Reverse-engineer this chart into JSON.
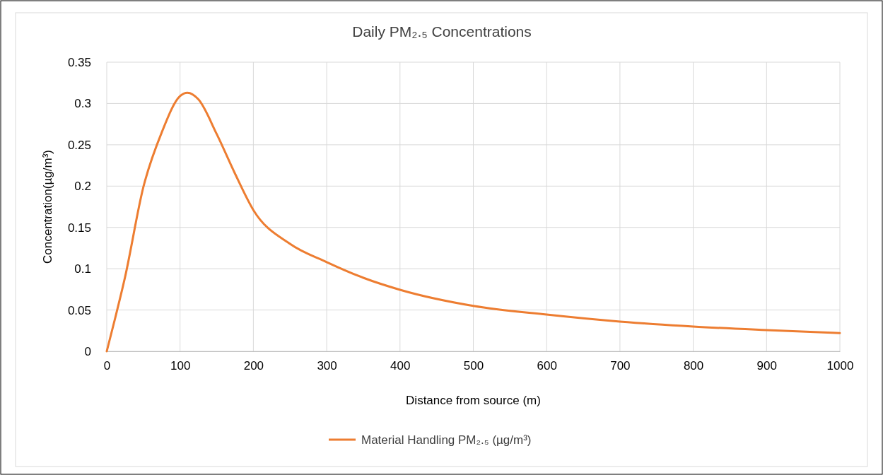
{
  "chart_data": {
    "type": "line",
    "title": "Daily PM₂.₅ Concentrations",
    "xlabel": "Distance from source (m)",
    "ylabel": "Concentration(µg/m³)",
    "x": [
      0,
      10,
      25,
      50,
      75,
      100,
      110,
      125,
      150,
      175,
      200,
      250,
      300,
      350,
      400,
      500,
      600,
      700,
      800,
      900,
      1000
    ],
    "series": [
      {
        "name": "Material Handling PM₂.₅ (µg/m³)",
        "color": "#ed7d31",
        "values": [
          0,
          0.035,
          0.09,
          0.199,
          0.265,
          0.309,
          0.313,
          0.305,
          0.263,
          0.215,
          0.171,
          0.13,
          0.108,
          0.089,
          0.0745,
          0.055,
          0.0445,
          0.036,
          0.03,
          0.0257,
          0.022
        ]
      }
    ],
    "xlim": [
      0,
      1000
    ],
    "xticks": [
      0,
      100,
      200,
      300,
      400,
      500,
      600,
      700,
      800,
      900,
      1000
    ],
    "ylim": [
      0,
      0.35
    ],
    "yticks": [
      0,
      {
        "value": 0.05,
        "label": "0.05"
      },
      {
        "value": 0.1,
        "label": "0.1"
      },
      {
        "value": 0.15,
        "label": "0.15"
      },
      {
        "value": 0.2,
        "label": "0.2"
      },
      {
        "value": 0.25,
        "label": "0.25"
      },
      {
        "value": 0.3,
        "label": "0.3"
      },
      {
        "value": 0.35,
        "label": "0.35"
      }
    ],
    "grid": true,
    "legend": "bottom",
    "marker": "none",
    "line_style": "solid"
  }
}
